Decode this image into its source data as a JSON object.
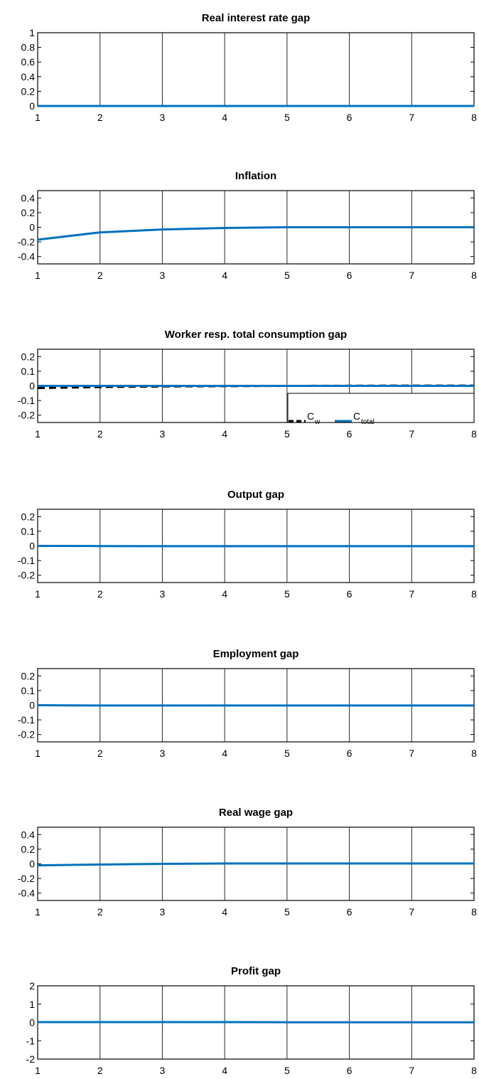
{
  "chart_data": [
    {
      "type": "line",
      "title": "Real interest rate gap",
      "xlim": [
        1,
        8
      ],
      "ylim": [
        0,
        1
      ],
      "xticks": [
        "1",
        "2",
        "3",
        "4",
        "5",
        "6",
        "7",
        "8"
      ],
      "yticks": [
        "1",
        "0.8",
        "0.6",
        "0.4",
        "0.2",
        "0"
      ],
      "ytick_values": [
        1,
        0.8,
        0.6,
        0.4,
        0.2,
        0
      ],
      "grid": "vertical",
      "series": [
        {
          "color": "#0072BD",
          "style": "solid",
          "x": [
            1,
            2,
            3,
            4,
            5,
            6,
            7,
            8
          ],
          "y": [
            0,
            0,
            0,
            0,
            0,
            0,
            0,
            0
          ]
        }
      ]
    },
    {
      "type": "line",
      "title": "Inflation",
      "xlim": [
        1,
        8
      ],
      "ylim": [
        -0.5,
        0.5
      ],
      "xticks": [
        "1",
        "2",
        "3",
        "4",
        "5",
        "6",
        "7",
        "8"
      ],
      "yticks": [
        "0.4",
        "0.2",
        "0",
        "-0.2",
        "-0.4"
      ],
      "ytick_values": [
        0.4,
        0.2,
        0,
        -0.2,
        -0.4
      ],
      "grid": "vertical",
      "series": [
        {
          "color": "#0072BD",
          "style": "solid",
          "x": [
            1,
            2,
            3,
            4,
            5,
            6,
            7,
            8
          ],
          "y": [
            -0.17,
            -0.07,
            -0.03,
            -0.01,
            0,
            0,
            0,
            0
          ]
        }
      ]
    },
    {
      "type": "line",
      "title": "Worker resp. total consumption gap",
      "xlim": [
        1,
        8
      ],
      "ylim": [
        -0.25,
        0.25
      ],
      "xticks": [
        "1",
        "2",
        "3",
        "4",
        "5",
        "6",
        "7",
        "8"
      ],
      "yticks": [
        "0.2",
        "0.1",
        "0",
        "-0.1",
        "-0.2"
      ],
      "ytick_values": [
        0.2,
        0.1,
        0,
        -0.1,
        -0.2
      ],
      "grid": "vertical",
      "legend": {
        "position": "bottom-right",
        "entries": [
          {
            "base": "C",
            "sub": "w",
            "color": "#000000",
            "style": "dashed"
          },
          {
            "base": "C",
            "sub": "total",
            "color": "#0072BD",
            "style": "solid"
          }
        ]
      },
      "series": [
        {
          "color": "#000000",
          "style": "dashed",
          "x": [
            1,
            2,
            3,
            4,
            5,
            6,
            7,
            8
          ],
          "y": [
            -0.015,
            -0.008,
            -0.004,
            -0.002,
            0,
            0.001,
            0.002,
            0.002
          ]
        },
        {
          "color": "#0072BD",
          "style": "solid",
          "x": [
            1,
            2,
            3,
            4,
            5,
            6,
            7,
            8
          ],
          "y": [
            0,
            0,
            0,
            0,
            0,
            0,
            0,
            0
          ]
        }
      ]
    },
    {
      "type": "line",
      "title": "Output gap",
      "xlim": [
        1,
        8
      ],
      "ylim": [
        -0.25,
        0.25
      ],
      "xticks": [
        "1",
        "2",
        "3",
        "4",
        "5",
        "6",
        "7",
        "8"
      ],
      "yticks": [
        "0.2",
        "0.1",
        "0",
        "-0.1",
        "-0.2"
      ],
      "ytick_values": [
        0.2,
        0.1,
        0,
        -0.1,
        -0.2
      ],
      "grid": "vertical",
      "series": [
        {
          "color": "#0072BD",
          "style": "solid",
          "x": [
            1,
            2,
            3,
            4,
            5,
            6,
            7,
            8
          ],
          "y": [
            0,
            -0.001,
            -0.002,
            -0.002,
            -0.002,
            -0.002,
            -0.002,
            -0.002
          ]
        }
      ]
    },
    {
      "type": "line",
      "title": "Employment gap",
      "xlim": [
        1,
        8
      ],
      "ylim": [
        -0.25,
        0.25
      ],
      "xticks": [
        "1",
        "2",
        "3",
        "4",
        "5",
        "6",
        "7",
        "8"
      ],
      "yticks": [
        "0.2",
        "0.1",
        "0",
        "-0.1",
        "-0.2"
      ],
      "ytick_values": [
        0.2,
        0.1,
        0,
        -0.1,
        -0.2
      ],
      "grid": "vertical",
      "series": [
        {
          "color": "#0072BD",
          "style": "solid",
          "x": [
            1,
            2,
            3,
            4,
            5,
            6,
            7,
            8
          ],
          "y": [
            0,
            -0.002,
            -0.002,
            -0.002,
            -0.002,
            -0.002,
            -0.002,
            -0.002
          ]
        }
      ]
    },
    {
      "type": "line",
      "title": "Real wage gap",
      "xlim": [
        1,
        8
      ],
      "ylim": [
        -0.5,
        0.5
      ],
      "xticks": [
        "1",
        "2",
        "3",
        "4",
        "5",
        "6",
        "7",
        "8"
      ],
      "yticks": [
        "0.4",
        "0.2",
        "0",
        "-0.2",
        "-0.4"
      ],
      "ytick_values": [
        0.4,
        0.2,
        0,
        -0.2,
        -0.4
      ],
      "grid": "vertical",
      "series": [
        {
          "color": "#0072BD",
          "style": "solid",
          "x": [
            1,
            2,
            3,
            4,
            5,
            6,
            7,
            8
          ],
          "y": [
            -0.02,
            -0.01,
            0,
            0.005,
            0.005,
            0.005,
            0.005,
            0.005
          ]
        }
      ]
    },
    {
      "type": "line",
      "title": "Profit gap",
      "xlim": [
        1,
        8
      ],
      "ylim": [
        -2,
        2
      ],
      "xticks": [
        "1",
        "2",
        "3",
        "4",
        "5",
        "6",
        "7",
        "8"
      ],
      "yticks": [
        "2",
        "1",
        "0",
        "-1",
        "-2"
      ],
      "ytick_values": [
        2,
        1,
        0,
        -1,
        -2
      ],
      "grid": "vertical",
      "series": [
        {
          "color": "#0072BD",
          "style": "solid",
          "x": [
            1,
            2,
            3,
            4,
            5,
            6,
            7,
            8
          ],
          "y": [
            0.02,
            0.02,
            0.02,
            0.02,
            0.01,
            0.01,
            0.01,
            0.01
          ]
        }
      ]
    }
  ]
}
